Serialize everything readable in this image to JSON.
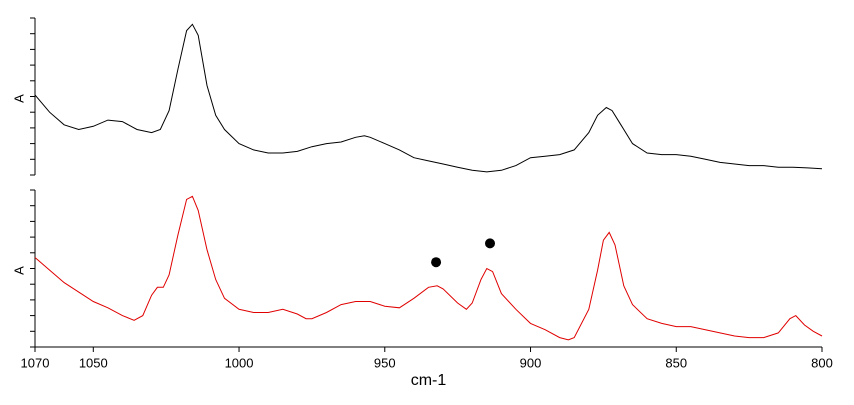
{
  "chart_data": [
    {
      "type": "line",
      "ylabel": "A",
      "ylim": [
        0,
        1
      ],
      "yticks": [
        0,
        0.1,
        0.2,
        0.3,
        0.4,
        0.5,
        0.6,
        0.7,
        0.8,
        0.9,
        1
      ],
      "xlim": [
        1070,
        800
      ],
      "x": [
        1070,
        1065,
        1060,
        1055,
        1050,
        1045,
        1040,
        1035,
        1030,
        1027,
        1024,
        1021,
        1018,
        1016,
        1014,
        1011,
        1008,
        1005,
        1000,
        995,
        990,
        985,
        980,
        975,
        970,
        965,
        960,
        957,
        955,
        950,
        945,
        940,
        935,
        930,
        925,
        920,
        915,
        910,
        905,
        900,
        895,
        890,
        885,
        880,
        877,
        874,
        872,
        869,
        865,
        860,
        855,
        850,
        845,
        840,
        835,
        830,
        825,
        820,
        815,
        810,
        805,
        800
      ],
      "series": [
        {
          "color": "#000000",
          "values": [
            0.51,
            0.4,
            0.32,
            0.29,
            0.31,
            0.35,
            0.34,
            0.29,
            0.27,
            0.29,
            0.41,
            0.67,
            0.92,
            0.96,
            0.89,
            0.57,
            0.38,
            0.29,
            0.2,
            0.16,
            0.14,
            0.14,
            0.15,
            0.18,
            0.2,
            0.21,
            0.24,
            0.25,
            0.24,
            0.2,
            0.16,
            0.11,
            0.09,
            0.07,
            0.05,
            0.03,
            0.02,
            0.03,
            0.06,
            0.11,
            0.12,
            0.13,
            0.16,
            0.27,
            0.38,
            0.43,
            0.41,
            0.32,
            0.2,
            0.14,
            0.13,
            0.13,
            0.12,
            0.1,
            0.08,
            0.07,
            0.06,
            0.06,
            0.05,
            0.05,
            0.045,
            0.04
          ]
        }
      ]
    },
    {
      "type": "line",
      "ylabel": "A",
      "xlabel": "cm-1",
      "ylim": [
        0,
        1
      ],
      "yticks": [
        0,
        0.1,
        0.2,
        0.3,
        0.4,
        0.5,
        0.6,
        0.7,
        0.8,
        0.9,
        1
      ],
      "xlim": [
        1070,
        800
      ],
      "xticks": [
        1070,
        1050,
        1000,
        950,
        900,
        850,
        800
      ],
      "x": [
        1070,
        1065,
        1060,
        1055,
        1050,
        1045,
        1040,
        1036,
        1033,
        1030,
        1028,
        1026,
        1024,
        1021,
        1018,
        1016,
        1014,
        1011,
        1008,
        1005,
        1000,
        995,
        990,
        985,
        980,
        977,
        975,
        970,
        965,
        960,
        955,
        950,
        945,
        940,
        935,
        932,
        930,
        925,
        922,
        920,
        917,
        915,
        913,
        910,
        905,
        900,
        895,
        890,
        887,
        885,
        880,
        877,
        875,
        873,
        871,
        868,
        865,
        860,
        855,
        850,
        845,
        840,
        835,
        830,
        825,
        820,
        815,
        811,
        809,
        806,
        803,
        800
      ],
      "series": [
        {
          "color": "#e00000",
          "values": [
            0.57,
            0.49,
            0.41,
            0.35,
            0.29,
            0.25,
            0.2,
            0.17,
            0.2,
            0.33,
            0.38,
            0.38,
            0.46,
            0.71,
            0.94,
            0.96,
            0.87,
            0.62,
            0.43,
            0.31,
            0.24,
            0.22,
            0.22,
            0.24,
            0.21,
            0.18,
            0.18,
            0.22,
            0.27,
            0.29,
            0.29,
            0.26,
            0.25,
            0.31,
            0.38,
            0.39,
            0.37,
            0.28,
            0.24,
            0.28,
            0.43,
            0.5,
            0.48,
            0.34,
            0.24,
            0.15,
            0.11,
            0.06,
            0.045,
            0.06,
            0.24,
            0.49,
            0.68,
            0.73,
            0.65,
            0.39,
            0.27,
            0.18,
            0.15,
            0.13,
            0.13,
            0.11,
            0.09,
            0.07,
            0.06,
            0.06,
            0.09,
            0.18,
            0.2,
            0.14,
            0.1,
            0.07
          ]
        }
      ],
      "markers": {
        "color": "#000000",
        "x": [
          932.4,
          913.9
        ],
        "values": [
          0.54,
          0.66
        ]
      }
    }
  ]
}
